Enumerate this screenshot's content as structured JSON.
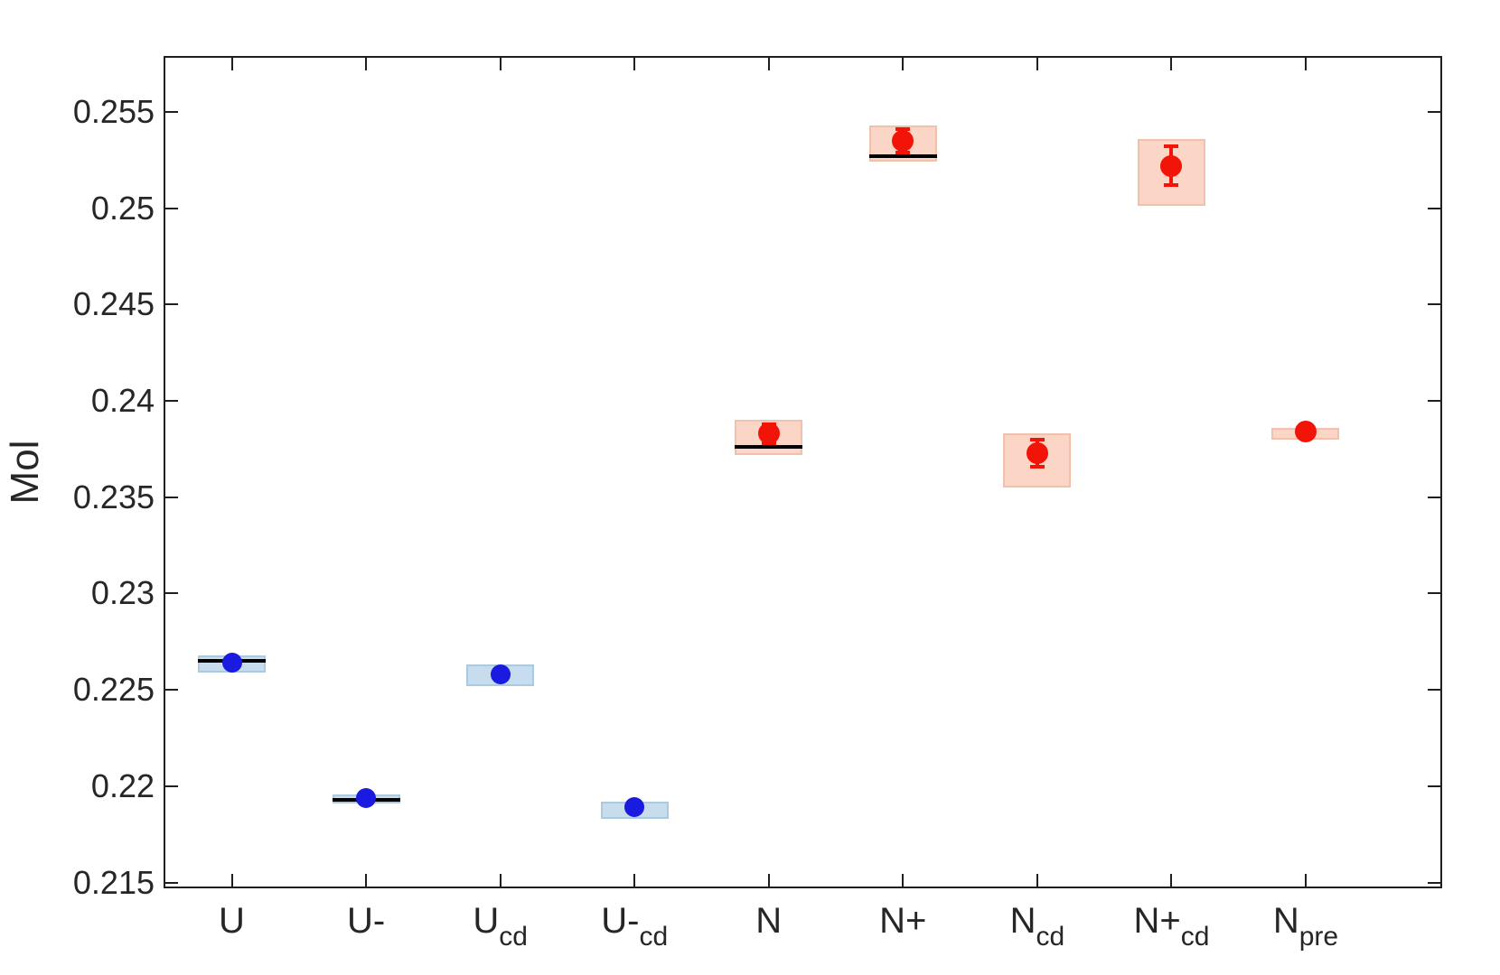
{
  "figure": {
    "background": "#ffffff",
    "axis_color": "#1f1f1f",
    "text_color": "#262626"
  },
  "chart_data": {
    "type": "scatter",
    "title": "",
    "xlabel": "",
    "ylabel": "Mol",
    "ylim": [
      0.2148,
      0.2578
    ],
    "grid": false,
    "legend": null,
    "yticks": [
      {
        "value": 0.215,
        "label": "0.215"
      },
      {
        "value": 0.22,
        "label": "0.22"
      },
      {
        "value": 0.225,
        "label": "0.225"
      },
      {
        "value": 0.23,
        "label": "0.23"
      },
      {
        "value": 0.235,
        "label": "0.235"
      },
      {
        "value": 0.24,
        "label": "0.24"
      },
      {
        "value": 0.245,
        "label": "0.245"
      },
      {
        "value": 0.25,
        "label": "0.25"
      },
      {
        "value": 0.255,
        "label": "0.255"
      }
    ],
    "categories": [
      {
        "base": "U",
        "sub": ""
      },
      {
        "base": "U-",
        "sub": ""
      },
      {
        "base": "U",
        "sub": "cd"
      },
      {
        "base": "U-",
        "sub": "cd"
      },
      {
        "base": "N",
        "sub": ""
      },
      {
        "base": "N+",
        "sub": ""
      },
      {
        "base": "N",
        "sub": "cd"
      },
      {
        "base": "N+",
        "sub": "cd"
      },
      {
        "base": "N",
        "sub": "pre"
      }
    ],
    "points": [
      {
        "label": "U",
        "group": "blue",
        "value": 0.2264,
        "err": null,
        "box": [
          0.2259,
          0.2268
        ],
        "ref_line": 0.2265
      },
      {
        "label": "U-",
        "group": "blue",
        "value": 0.2194,
        "err": null,
        "box": [
          0.2191,
          0.2196
        ],
        "ref_line": 0.2193
      },
      {
        "label": "U_cd",
        "group": "blue",
        "value": 0.2258,
        "err": null,
        "box": [
          0.2252,
          0.2263
        ],
        "ref_line": null
      },
      {
        "label": "U-_cd",
        "group": "blue",
        "value": 0.2189,
        "err": null,
        "box": [
          0.2183,
          0.2192
        ],
        "ref_line": null
      },
      {
        "label": "N",
        "group": "red",
        "value": 0.2383,
        "err": 0.0005,
        "box": [
          0.2372,
          0.239
        ],
        "ref_line": 0.2376
      },
      {
        "label": "N+",
        "group": "red",
        "value": 0.2535,
        "err": 0.0006,
        "box": [
          0.2524,
          0.2543
        ],
        "ref_line": 0.2527
      },
      {
        "label": "N_cd",
        "group": "red",
        "value": 0.2373,
        "err": 0.0007,
        "box": [
          0.2355,
          0.2383
        ],
        "ref_line": null
      },
      {
        "label": "N+_cd",
        "group": "red",
        "value": 0.2522,
        "err": 0.001,
        "box": [
          0.2501,
          0.2536
        ],
        "ref_line": null
      },
      {
        "label": "N_pre",
        "group": "red",
        "value": 0.2384,
        "err": null,
        "box": [
          0.238,
          0.2386
        ],
        "ref_line": null
      }
    ],
    "groups": {
      "blue": {
        "marker_color": "#1a1ae0",
        "box_fill": "#c7dcec",
        "box_border": "#accadf",
        "marker_diameter": 22
      },
      "red": {
        "marker_color": "#f21408",
        "box_fill": "#fbd5c6",
        "box_border": "#f3c0ad",
        "marker_diameter": 24
      }
    },
    "ref_line_color": "#000000"
  }
}
